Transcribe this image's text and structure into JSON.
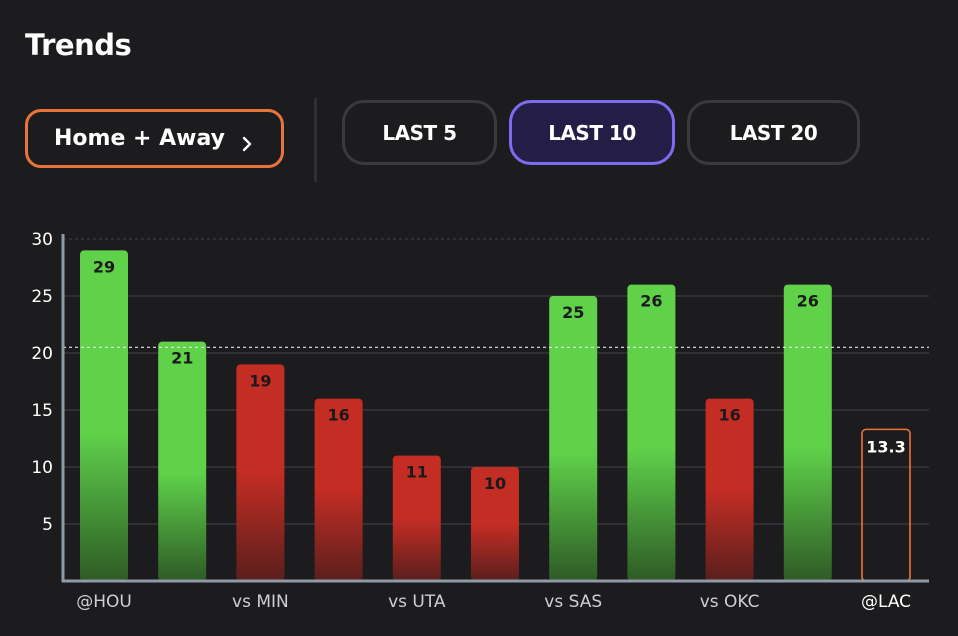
{
  "header": {
    "title": "Trends"
  },
  "filter": {
    "label": "Home + Away",
    "icon": "chevron-right-icon"
  },
  "ranges": [
    {
      "label": "LAST 5",
      "active": false
    },
    {
      "label": "LAST 10",
      "active": true
    },
    {
      "label": "LAST 20",
      "active": false
    }
  ],
  "colors": {
    "over": "#5fd24a",
    "under": "#c42d24",
    "projection_outline": "#e8743b",
    "active_accent": "#7b6cf0",
    "filter_accent": "#e8743b"
  },
  "chart_data": {
    "type": "bar",
    "categories": [
      "@HOU",
      "",
      "vs MIN",
      "",
      "vs UTA",
      "",
      "vs SAS",
      "",
      "vs OKC",
      "",
      "@LAC"
    ],
    "values": [
      29,
      21,
      19,
      16,
      11,
      10,
      25,
      26,
      16,
      26,
      13.3
    ],
    "value_labels": [
      "29",
      "21",
      "19",
      "16",
      "11",
      "10",
      "25",
      "26",
      "16",
      "26",
      "13.3"
    ],
    "status": [
      "over",
      "over",
      "under",
      "under",
      "under",
      "under",
      "over",
      "over",
      "under",
      "over",
      "projection"
    ],
    "reference_line": 20.5,
    "ylim": [
      0,
      30
    ],
    "yticks": [
      "5",
      "10",
      "15",
      "20",
      "25",
      "30"
    ],
    "ytick_values": [
      5,
      10,
      15,
      20,
      25,
      30
    ],
    "grid": true,
    "title": "",
    "xlabel": "",
    "ylabel": ""
  }
}
